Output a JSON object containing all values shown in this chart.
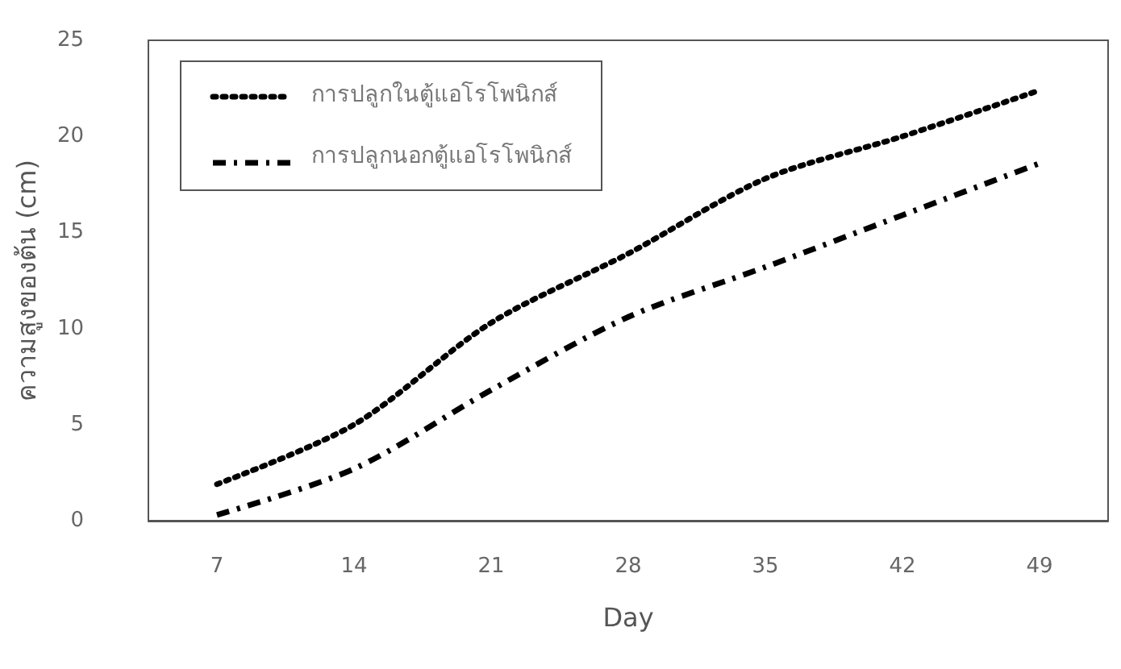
{
  "chart_data": {
    "type": "line",
    "xlabel": "Day",
    "ylabel": "ความสูงของต้น (cm)",
    "categories": [
      "7",
      "14",
      "21",
      "28",
      "35",
      "42",
      "49"
    ],
    "series": [
      {
        "name": "การปลูกในตู้แอโรโพนิกส์",
        "color": "#000000",
        "line_style": "dotted",
        "values": [
          1.9,
          5.0,
          10.3,
          13.9,
          17.8,
          20.0,
          22.4
        ]
      },
      {
        "name": "การปลูกนอกตู้แอโรโพนิกส์",
        "color": "#000000",
        "line_style": "dashed",
        "values": [
          0.3,
          2.7,
          6.8,
          10.6,
          13.2,
          15.9,
          18.6
        ]
      }
    ],
    "ylim": [
      0,
      25
    ],
    "yticks": [
      0,
      5,
      10,
      15,
      20,
      25
    ],
    "grid": false,
    "legend": "top left",
    "marker": "none"
  }
}
